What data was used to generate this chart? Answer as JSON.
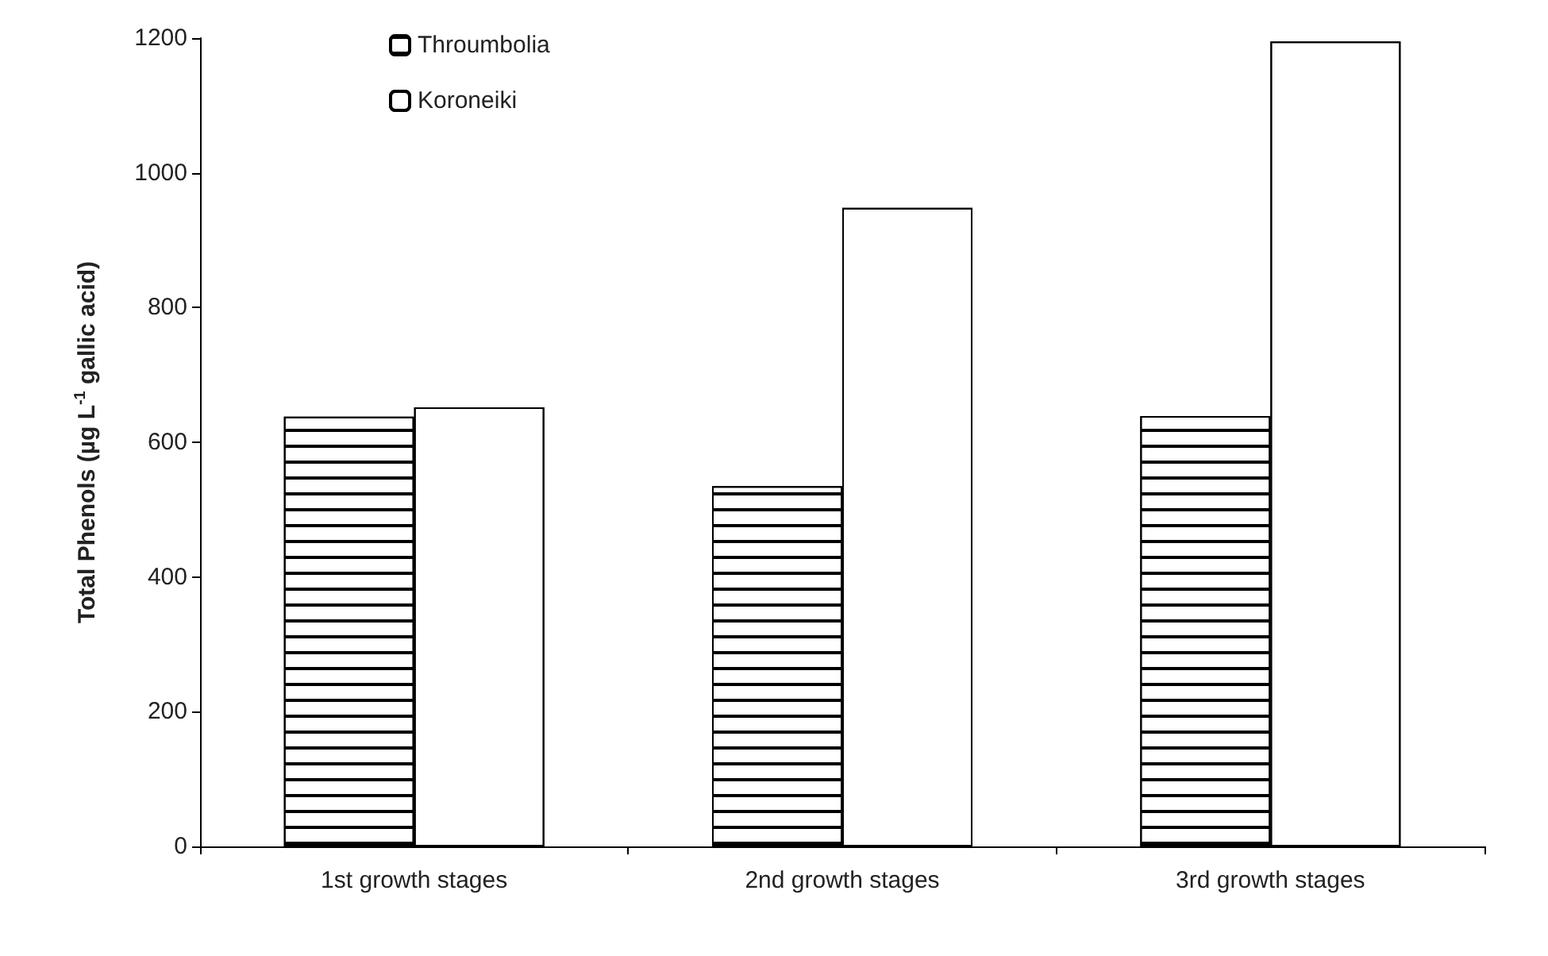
{
  "chart_data": {
    "type": "bar",
    "ylabel": "Total Phenols (µg L$^{-1}$ gallic acid)",
    "categories": [
      "1st growth stages",
      "2nd growth stages",
      "3rd growth stages"
    ],
    "series": [
      {
        "name": "Throumbolia",
        "color": "#ffffff",
        "values": [
          638,
          535,
          639
        ]
      },
      {
        "name": "Koroneiki",
        "color": "#ffffff",
        "values": [
          652,
          948,
          1195
        ]
      }
    ],
    "ylim": [
      0,
      1200
    ],
    "yticks": [
      0,
      200,
      400,
      600,
      800,
      1000,
      1200
    ],
    "grid": false,
    "legend": "top left"
  }
}
